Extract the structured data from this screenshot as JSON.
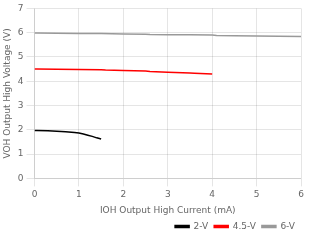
{
  "chart_data": {
    "type": "line",
    "x_label": "IOH Output High Current (mA)",
    "y_label": "VOH Output High Voltage (V)",
    "xlim": [
      0,
      6
    ],
    "ylim": [
      0,
      7
    ],
    "xticks": [
      0,
      1,
      2,
      3,
      4,
      5,
      6
    ],
    "yticks": [
      0,
      1,
      2,
      3,
      4,
      5,
      6,
      7
    ],
    "grid": true,
    "legend": "lower right",
    "series": [
      {
        "name": "2-V",
        "color": "#000000",
        "x": [
          0.0,
          0.05,
          0.3,
          0.5,
          0.7,
          0.9,
          1.0,
          1.1,
          1.2,
          1.3,
          1.4,
          1.5
        ],
        "values": [
          1.97,
          1.97,
          1.96,
          1.94,
          1.92,
          1.89,
          1.87,
          1.83,
          1.78,
          1.73,
          1.67,
          1.62
        ]
      },
      {
        "name": "4.5-V",
        "color": "#ff0000",
        "x": [
          0.0,
          0.05,
          0.5,
          1.0,
          1.5,
          1.6,
          2.0,
          2.5,
          2.6,
          3.0,
          3.5,
          3.6,
          4.0
        ],
        "values": [
          4.5,
          4.5,
          4.49,
          4.48,
          4.47,
          4.46,
          4.44,
          4.42,
          4.4,
          4.37,
          4.34,
          4.33,
          4.3
        ]
      },
      {
        "name": "6-V",
        "color": "#999999",
        "x": [
          0.0,
          0.05,
          0.5,
          1.0,
          1.5,
          2.0,
          2.5,
          2.6,
          3.0,
          3.5,
          4.0,
          4.1,
          4.5,
          5.0,
          5.5,
          6.0
        ],
        "values": [
          5.99,
          5.99,
          5.98,
          5.97,
          5.97,
          5.95,
          5.94,
          5.93,
          5.92,
          5.91,
          5.9,
          5.88,
          5.87,
          5.86,
          5.85,
          5.84
        ]
      }
    ]
  }
}
